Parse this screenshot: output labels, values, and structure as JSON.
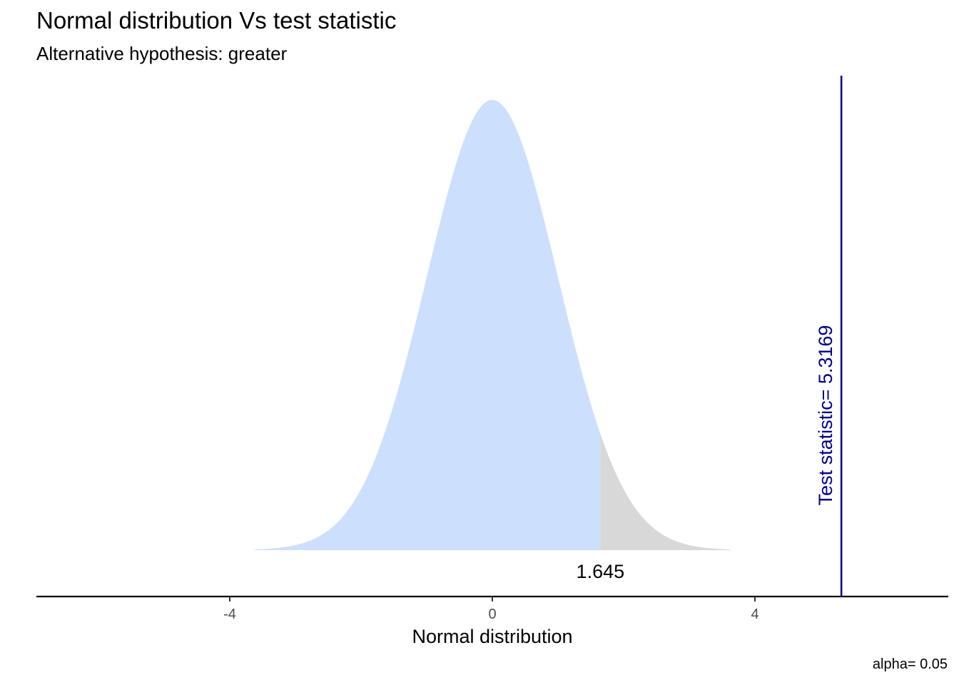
{
  "chart_data": {
    "type": "area",
    "title": "Normal distribution Vs test statistic",
    "subtitle": "Alternative hypothesis: greater",
    "xlabel": "Normal distribution",
    "ylabel": "",
    "xlim": [
      -6.93,
      6.93
    ],
    "x_ticks": [
      {
        "value": -4,
        "label": "-4"
      },
      {
        "value": 0,
        "label": "0"
      },
      {
        "value": 4,
        "label": "4"
      }
    ],
    "distribution": {
      "name": "standard normal",
      "mean": 0,
      "sd": 1,
      "x_range": [
        -3.62,
        3.62
      ]
    },
    "regions": [
      {
        "name": "acceptance",
        "from": -3.62,
        "to": 1.645,
        "color": "#cce0fd"
      },
      {
        "name": "rejection",
        "from": 1.645,
        "to": 3.62,
        "color": "#d8d8d8"
      }
    ],
    "critical_value": {
      "value": 1.645,
      "label": "1.645"
    },
    "test_statistic": {
      "value": 5.3169,
      "label": "Test statistic= 5.3169",
      "color": "#00008b"
    },
    "caption": "alpha= 0.05"
  }
}
